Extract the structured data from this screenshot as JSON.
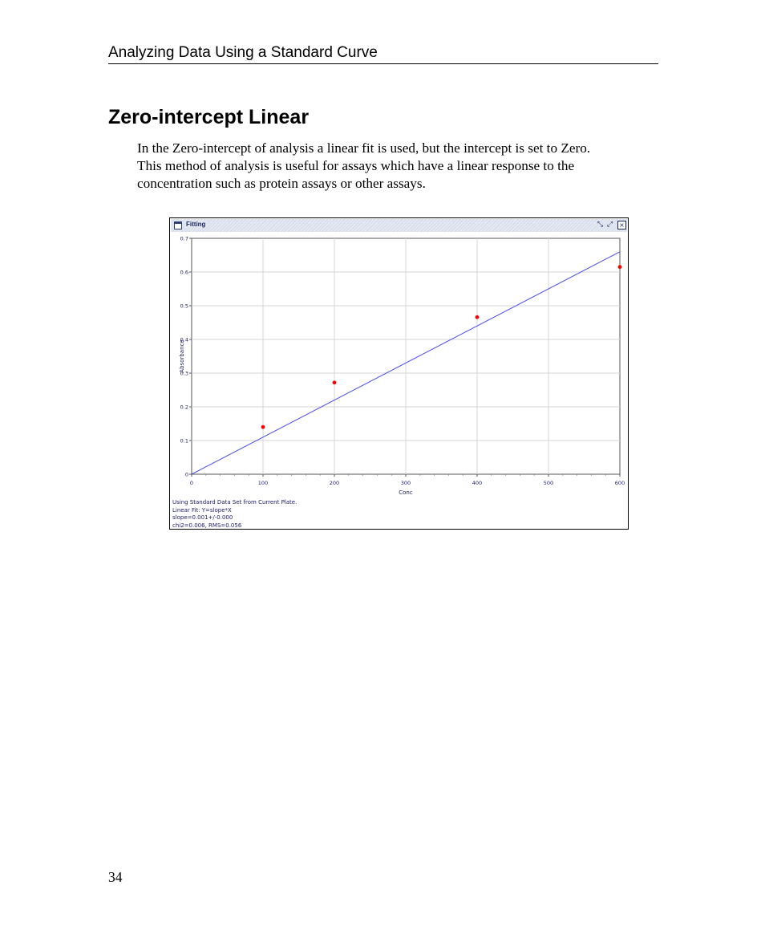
{
  "header": {
    "running_title": "Analyzing Data Using a Standard Curve"
  },
  "section": {
    "title": "Zero-intercept Linear",
    "paragraph_lines": [
      "In the Zero-intercept of analysis a linear fit is used, but the intercept is set to Zero.",
      "This method of analysis is useful for assays which have a linear response to the",
      "concentration such as protein assays or other assays."
    ]
  },
  "window": {
    "title": "Fitting",
    "controls": {
      "shrink": "⤡",
      "expand": "⤢",
      "close": "×"
    },
    "stats_lines": [
      "Using Standard Data Set from Current Plate.",
      "Linear Fit: Y=slope*X",
      "slope=0.001+/-0.000",
      "chi2=0.006, RMS=0.056"
    ]
  },
  "chart_data": {
    "type": "scatter",
    "xlabel": "Conc",
    "ylabel": "Absorbance",
    "xlim": [
      0,
      600
    ],
    "ylim": [
      0,
      0.7
    ],
    "x_ticks": [
      0,
      100,
      200,
      300,
      400,
      500,
      600
    ],
    "y_ticks": [
      0,
      0.1,
      0.2,
      0.3,
      0.4,
      0.5,
      0.6,
      0.7
    ],
    "x_tick_labels": [
      "0",
      "100",
      "200",
      "300",
      "400",
      "500",
      "600"
    ],
    "y_tick_labels": [
      "0",
      "0.1",
      "0.2",
      "0.3",
      "0.4",
      "0.5",
      "0.6",
      "0.7"
    ],
    "points": [
      {
        "x": 100,
        "y": 0.14
      },
      {
        "x": 200,
        "y": 0.272
      },
      {
        "x": 400,
        "y": 0.466
      },
      {
        "x": 600,
        "y": 0.615
      }
    ],
    "fit_line": {
      "slope": 0.0011,
      "intercept": 0,
      "x_range": [
        0,
        600
      ]
    },
    "grid": true,
    "colors": {
      "points": "#ff0000",
      "fit": "#4a4af0",
      "grid": "#d4d4d4",
      "labels": "#1a1a70"
    }
  }
}
